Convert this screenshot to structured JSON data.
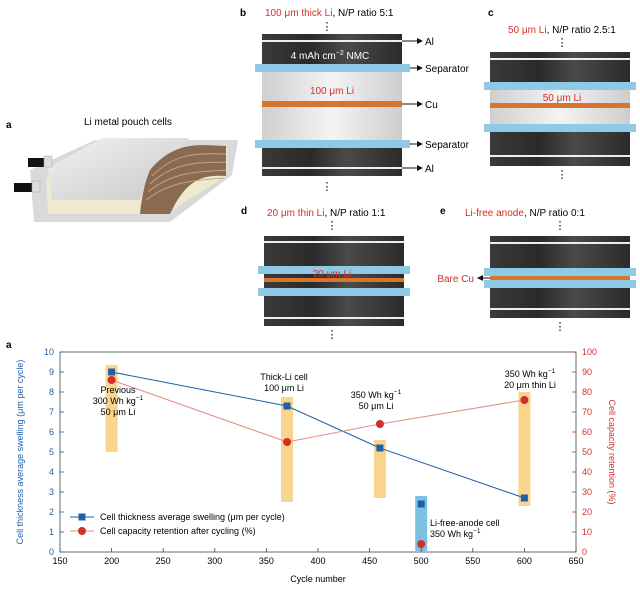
{
  "panel_a_top": {
    "letter": "a",
    "title": "Li metal pouch cells"
  },
  "panel_b": {
    "letter": "b",
    "heading_red": "100 μm thick Li",
    "heading_rest": ", N/P ratio 5:1",
    "cathode_label": "4 mAh cm",
    "cathode_exp": "−2",
    "cathode_label_tail": " NMC",
    "li_label": "100 μm Li",
    "callouts": {
      "al_top": "Al",
      "sep_top": "Separator",
      "cu": "Cu",
      "sep_bottom": "Separator",
      "al_bottom": "Al"
    }
  },
  "panel_c": {
    "letter": "c",
    "heading_red": "50 μm Li",
    "heading_rest": ", N/P ratio 2.5:1",
    "li_label": "50 μm Li"
  },
  "panel_d": {
    "letter": "d",
    "heading_red": "20 μm thin Li",
    "heading_rest": ", N/P ratio 1:1",
    "li_label": "20 μm Li"
  },
  "panel_e": {
    "letter": "e",
    "heading_red": "Li-free anode",
    "heading_rest": ", N/P ratio 0:1",
    "bare_cu": "Bare Cu"
  },
  "ellipsis": "⋮",
  "colors": {
    "blue": "#1f5fa8",
    "red": "#d0302a",
    "separator": "#8fc9e6",
    "li": "#d8742e",
    "highlight": "#f8d48c",
    "highlight_blue": "#7cc0e4"
  },
  "chart_data": {
    "type": "line",
    "panel_letter": "a",
    "xlabel": "Cycle number",
    "ylabel_left": "Cell thickness average swelling (μm per cycle)",
    "ylabel_right": "Cell capacity retention (%)",
    "xlim": [
      150,
      650
    ],
    "ylim_left": [
      0,
      10
    ],
    "ylim_right": [
      0,
      100
    ],
    "x_ticks": [
      150,
      200,
      250,
      300,
      350,
      400,
      450,
      500,
      550,
      600,
      650
    ],
    "y_ticks_left": [
      0,
      1,
      2,
      3,
      4,
      5,
      6,
      7,
      8,
      9,
      10
    ],
    "y_ticks_right": [
      0,
      10,
      20,
      30,
      40,
      50,
      60,
      70,
      80,
      90,
      100
    ],
    "series": [
      {
        "name": "Cell thickness average swelling (μm per cycle)",
        "axis": "left",
        "marker": "square",
        "x": [
          200,
          370,
          460,
          600
        ],
        "y": [
          9.0,
          7.3,
          5.2,
          2.7
        ]
      },
      {
        "name": "Cell capacity retention after cycling (%)",
        "axis": "right",
        "marker": "circle",
        "x": [
          200,
          370,
          460,
          600
        ],
        "y": [
          86,
          55,
          64,
          76
        ]
      }
    ],
    "li_free_point": {
      "x": 500,
      "swelling": 2.4,
      "retention": 4
    },
    "annotations": [
      {
        "lines": [
          "Previous",
          "300 Wh kg",
          "50 μm Li"
        ],
        "sup_line": 1,
        "sup": "−1"
      },
      {
        "lines": [
          "Thick-Li cell",
          "100 μm Li"
        ]
      },
      {
        "lines": [
          "350 Wh kg",
          "50 μm Li"
        ],
        "sup_line": 0,
        "sup": "−1"
      },
      {
        "lines": [
          "350 Wh kg",
          "20 μm thin Li"
        ],
        "sup_line": 0,
        "sup": "−1"
      },
      {
        "lines": [
          "Li-free-anode cell",
          "350 Wh kg"
        ],
        "sup_line": 1,
        "sup": "−1"
      }
    ],
    "legend": [
      "Cell thickness average swelling (μm per cycle)",
      "Cell capacity retention after cycling (%)"
    ]
  }
}
